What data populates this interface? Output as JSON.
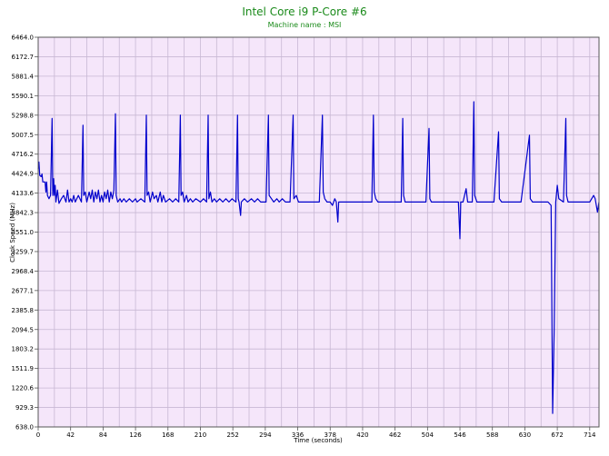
{
  "chart_data": {
    "type": "line",
    "title": "Intel Core i9 P-Core #6",
    "subtitle": "Machine name : MSI",
    "xlabel": "Time (seconds)",
    "ylabel": "Clock Speed (MHz)",
    "xlim": [
      0,
      726
    ],
    "ylim": [
      638.0,
      6464.0
    ],
    "grid": true,
    "x_ticks": [
      "0",
      "42",
      "84",
      "126",
      "168",
      "210",
      "252",
      "294",
      "336",
      "378",
      "420",
      "462",
      "504",
      "546",
      "588",
      "630",
      "672",
      "714"
    ],
    "y_ticks": [
      "638.0",
      "929.3",
      "1220.6",
      "1511.9",
      "1803.2",
      "2094.5",
      "2385.8",
      "2677.1",
      "2968.4",
      "3259.7",
      "3551.0",
      "3842.3",
      "4133.6",
      "4424.9",
      "4716.2",
      "5007.5",
      "5298.8",
      "5590.1",
      "5881.4",
      "6172.7",
      "6464.0"
    ],
    "colors": {
      "line": "#0000cc",
      "plot_bg": "#f5e6fa",
      "grid": "#c8b8d4",
      "title": "#1a8a1a"
    },
    "series": [
      {
        "values": [
          [
            0,
            4500
          ],
          [
            1,
            4600
          ],
          [
            2,
            4400
          ],
          [
            4,
            4380
          ],
          [
            5,
            4420
          ],
          [
            6,
            4300
          ],
          [
            9,
            4300
          ],
          [
            10,
            4150
          ],
          [
            11,
            4300
          ],
          [
            12,
            4100
          ],
          [
            14,
            4050
          ],
          [
            16,
            4100
          ],
          [
            18,
            5250
          ],
          [
            19,
            4100
          ],
          [
            20,
            4350
          ],
          [
            21,
            4100
          ],
          [
            22,
            4250
          ],
          [
            23,
            4000
          ],
          [
            25,
            4180
          ],
          [
            27,
            3980
          ],
          [
            30,
            4050
          ],
          [
            33,
            4100
          ],
          [
            36,
            4000
          ],
          [
            38,
            4180
          ],
          [
            40,
            4000
          ],
          [
            42,
            4050
          ],
          [
            44,
            4000
          ],
          [
            46,
            4100
          ],
          [
            48,
            4000
          ],
          [
            52,
            4100
          ],
          [
            56,
            4000
          ],
          [
            58,
            5150
          ],
          [
            59,
            4100
          ],
          [
            61,
            4150
          ],
          [
            63,
            4000
          ],
          [
            66,
            4150
          ],
          [
            68,
            4050
          ],
          [
            70,
            4180
          ],
          [
            72,
            4000
          ],
          [
            74,
            4150
          ],
          [
            76,
            4050
          ],
          [
            78,
            4180
          ],
          [
            80,
            4000
          ],
          [
            82,
            4100
          ],
          [
            84,
            4000
          ],
          [
            86,
            4150
          ],
          [
            88,
            4050
          ],
          [
            90,
            4180
          ],
          [
            92,
            4000
          ],
          [
            94,
            4150
          ],
          [
            96,
            4050
          ],
          [
            98,
            4180
          ],
          [
            100,
            5320
          ],
          [
            101,
            4100
          ],
          [
            103,
            4000
          ],
          [
            106,
            4050
          ],
          [
            108,
            4000
          ],
          [
            111,
            4050
          ],
          [
            114,
            4000
          ],
          [
            118,
            4050
          ],
          [
            122,
            4000
          ],
          [
            126,
            4050
          ],
          [
            128,
            4000
          ],
          [
            133,
            4050
          ],
          [
            138,
            4000
          ],
          [
            140,
            5300
          ],
          [
            141,
            4100
          ],
          [
            143,
            4150
          ],
          [
            145,
            4000
          ],
          [
            148,
            4150
          ],
          [
            150,
            4050
          ],
          [
            153,
            4100
          ],
          [
            155,
            4000
          ],
          [
            158,
            4150
          ],
          [
            160,
            4000
          ],
          [
            162,
            4100
          ],
          [
            165,
            4000
          ],
          [
            170,
            4050
          ],
          [
            174,
            4000
          ],
          [
            178,
            4050
          ],
          [
            182,
            4000
          ],
          [
            184,
            5300
          ],
          [
            185,
            4100
          ],
          [
            187,
            4150
          ],
          [
            189,
            4000
          ],
          [
            192,
            4100
          ],
          [
            194,
            4000
          ],
          [
            197,
            4050
          ],
          [
            200,
            4000
          ],
          [
            204,
            4050
          ],
          [
            210,
            4000
          ],
          [
            214,
            4050
          ],
          [
            218,
            4000
          ],
          [
            220,
            5300
          ],
          [
            221,
            4050
          ],
          [
            223,
            4150
          ],
          [
            225,
            4000
          ],
          [
            228,
            4050
          ],
          [
            231,
            4000
          ],
          [
            235,
            4050
          ],
          [
            239,
            4000
          ],
          [
            243,
            4050
          ],
          [
            247,
            4000
          ],
          [
            251,
            4050
          ],
          [
            256,
            4000
          ],
          [
            258,
            5300
          ],
          [
            259,
            4050
          ],
          [
            260,
            4000
          ],
          [
            262,
            3800
          ],
          [
            263,
            4000
          ],
          [
            267,
            4050
          ],
          [
            271,
            4000
          ],
          [
            276,
            4050
          ],
          [
            280,
            4000
          ],
          [
            284,
            4050
          ],
          [
            288,
            4000
          ],
          [
            295,
            4000
          ],
          [
            298,
            5300
          ],
          [
            299,
            4100
          ],
          [
            302,
            4050
          ],
          [
            305,
            4000
          ],
          [
            309,
            4050
          ],
          [
            312,
            4000
          ],
          [
            316,
            4050
          ],
          [
            320,
            4000
          ],
          [
            326,
            4000
          ],
          [
            330,
            5300
          ],
          [
            331,
            4050
          ],
          [
            334,
            4100
          ],
          [
            337,
            4000
          ],
          [
            344,
            4000
          ],
          [
            350,
            4000
          ],
          [
            356,
            4000
          ],
          [
            364,
            4000
          ],
          [
            368,
            5300
          ],
          [
            369,
            4150
          ],
          [
            371,
            4050
          ],
          [
            374,
            4000
          ],
          [
            378,
            4000
          ],
          [
            381,
            3950
          ],
          [
            384,
            4050
          ],
          [
            386,
            4000
          ],
          [
            388,
            3700
          ],
          [
            389,
            4000
          ],
          [
            396,
            4000
          ],
          [
            402,
            4000
          ],
          [
            410,
            4000
          ],
          [
            418,
            4000
          ],
          [
            426,
            4000
          ],
          [
            432,
            4000
          ],
          [
            434,
            5300
          ],
          [
            435,
            4150
          ],
          [
            437,
            4050
          ],
          [
            440,
            4000
          ],
          [
            448,
            4000
          ],
          [
            456,
            4000
          ],
          [
            464,
            4000
          ],
          [
            470,
            4000
          ],
          [
            472,
            5250
          ],
          [
            473,
            4100
          ],
          [
            475,
            4000
          ],
          [
            484,
            4000
          ],
          [
            496,
            4000
          ],
          [
            502,
            4000
          ],
          [
            506,
            5100
          ],
          [
            507,
            4050
          ],
          [
            509,
            4000
          ],
          [
            518,
            4000
          ],
          [
            526,
            4000
          ],
          [
            532,
            4000
          ],
          [
            540,
            4000
          ],
          [
            544,
            4000
          ],
          [
            546,
            3450
          ],
          [
            547,
            4000
          ],
          [
            550,
            4000
          ],
          [
            554,
            4200
          ],
          [
            556,
            4000
          ],
          [
            562,
            4000
          ],
          [
            564,
            5500
          ],
          [
            565,
            4100
          ],
          [
            568,
            4000
          ],
          [
            575,
            4000
          ],
          [
            583,
            4000
          ],
          [
            590,
            4000
          ],
          [
            596,
            5050
          ],
          [
            597,
            4050
          ],
          [
            600,
            4000
          ],
          [
            605,
            4000
          ],
          [
            615,
            4000
          ],
          [
            625,
            4000
          ],
          [
            636,
            5000
          ],
          [
            637,
            4050
          ],
          [
            640,
            4000
          ],
          [
            646,
            4000
          ],
          [
            654,
            4000
          ],
          [
            660,
            4000
          ],
          [
            664,
            3950
          ],
          [
            666,
            840
          ],
          [
            668,
            2100
          ],
          [
            670,
            4000
          ],
          [
            672,
            4250
          ],
          [
            674,
            4050
          ],
          [
            680,
            4000
          ],
          [
            683,
            5250
          ],
          [
            684,
            4100
          ],
          [
            686,
            4000
          ],
          [
            694,
            4000
          ],
          [
            702,
            4000
          ],
          [
            708,
            4000
          ],
          [
            714,
            4000
          ],
          [
            719,
            4100
          ],
          [
            721,
            4050
          ],
          [
            724,
            3850
          ],
          [
            726,
            4000
          ]
        ]
      }
    ]
  }
}
